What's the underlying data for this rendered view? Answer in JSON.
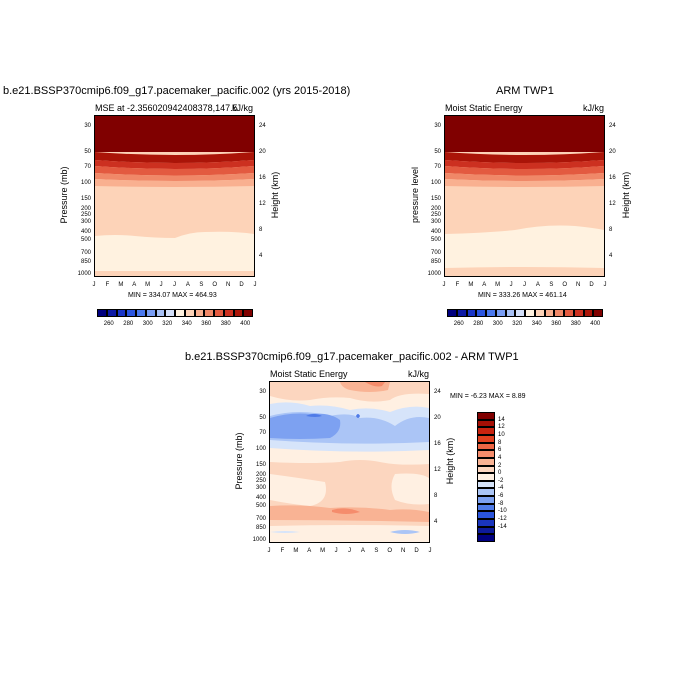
{
  "panel1": {
    "title": "b.e21.BSSP370cmip6.f09_g17.pacemaker_pacific.002 (yrs 2015-2018)",
    "subtitle_left": "MSE at -2.356020942408378,147.5",
    "subtitle_right": "kJ/kg",
    "ylabel": "Pressure (mb)",
    "ylabel_right": "Height (km)",
    "minmax": "MIN = 334.07 MAX = 464.93"
  },
  "panel2": {
    "title": "ARM TWP1",
    "subtitle_left": "Moist Static Energy",
    "subtitle_right": "kJ/kg",
    "ylabel": "pressure level",
    "ylabel_right": "Height (km)",
    "minmax": "MIN = 333.26 MAX = 461.14"
  },
  "panel3": {
    "title": "b.e21.BSSP370cmip6.f09_g17.pacemaker_pacific.002 - ARM TWP1",
    "subtitle_left": "Moist Static Energy",
    "subtitle_right": "kJ/kg",
    "ylabel": "Pressure (mb)",
    "ylabel_right": "Height (km)",
    "minmax": "MIN =  -6.23 MAX =   8.89"
  },
  "axes": {
    "months": [
      "J",
      "F",
      "M",
      "A",
      "M",
      "J",
      "J",
      "A",
      "S",
      "O",
      "N",
      "D",
      "J"
    ],
    "pressure_ticks": [
      "30",
      "50",
      "70",
      "100",
      "150",
      "200",
      "250",
      "300",
      "400",
      "500",
      "700",
      "850",
      "1000"
    ],
    "height_ticks_top": [
      "24",
      "20",
      "16",
      "12",
      "8",
      "4"
    ],
    "height_ticks_bottom": [
      "24",
      "20",
      "16",
      "12",
      "8",
      "4"
    ]
  },
  "colorbar_top": {
    "labels": [
      "260",
      "280",
      "300",
      "320",
      "340",
      "360",
      "380",
      "400"
    ],
    "colors": [
      "#00007f",
      "#0d1aa6",
      "#1a35c8",
      "#2b55e0",
      "#4a78ee",
      "#789cf4",
      "#a8c1f7",
      "#d4e0fa",
      "#fff2e0",
      "#fdd3b8",
      "#f9b090",
      "#f08868",
      "#e35a40",
      "#cc3020",
      "#aa1408",
      "#800000"
    ]
  },
  "colorbar_diff": {
    "labels": [
      "14",
      "12",
      "10",
      "8",
      "6",
      "4",
      "2",
      "0",
      "-2",
      "-4",
      "-6",
      "-8",
      "-10",
      "-12",
      "-14"
    ],
    "colors": [
      "#800000",
      "#a60f05",
      "#c8230f",
      "#e0401f",
      "#ee6644",
      "#f58c6c",
      "#f9b394",
      "#fcd6bf",
      "#fff0e2",
      "#d6e4fa",
      "#abc5f6",
      "#7da1f1",
      "#4f7be8",
      "#2b55dc",
      "#1a35bd",
      "#0d1a9a",
      "#00007f"
    ]
  },
  "chart_data": [
    {
      "type": "heatmap",
      "title": "b.e21.BSSP370cmip6.f09_g17.pacemaker_pacific.002 (yrs 2015-2018)",
      "subtitle": "MSE at -2.356020942408378,147.5",
      "units": "kJ/kg",
      "xlabel": "",
      "ylabel": "Pressure (mb)",
      "x": [
        "J",
        "F",
        "M",
        "A",
        "M",
        "J",
        "J",
        "A",
        "S",
        "O",
        "N",
        "D",
        "J"
      ],
      "y_levels": [
        30,
        50,
        70,
        100,
        150,
        200,
        250,
        300,
        400,
        500,
        700,
        850,
        1000
      ],
      "contour_levels": [
        260,
        270,
        280,
        290,
        300,
        310,
        320,
        330,
        340,
        350,
        360,
        370,
        380,
        390,
        400
      ],
      "rows_by_level": [
        {
          "p": 30,
          "values": [
            401,
            401,
            401,
            401,
            401,
            401,
            401,
            401,
            401,
            401,
            401,
            401,
            401
          ]
        },
        {
          "p": 50,
          "values": [
            395,
            394,
            392,
            390,
            388,
            386,
            385,
            386,
            388,
            390,
            392,
            394,
            395
          ]
        },
        {
          "p": 70,
          "values": [
            368,
            366,
            362,
            358,
            356,
            354,
            353,
            354,
            356,
            358,
            362,
            366,
            368
          ]
        },
        {
          "p": 100,
          "values": [
            355,
            354,
            352,
            350,
            349,
            348,
            348,
            348,
            349,
            350,
            352,
            354,
            355
          ]
        },
        {
          "p": 150,
          "values": [
            345,
            345,
            345,
            345,
            345,
            345,
            345,
            345,
            345,
            345,
            345,
            345,
            345
          ]
        },
        {
          "p": 200,
          "values": [
            342,
            342,
            342,
            342,
            342,
            342,
            342,
            342,
            342,
            342,
            342,
            342,
            342
          ]
        },
        {
          "p": 300,
          "values": [
            341,
            341,
            341,
            341,
            341,
            341,
            341,
            341,
            341,
            341,
            341,
            341,
            341
          ]
        },
        {
          "p": 400,
          "values": [
            341,
            341,
            341,
            338,
            341,
            339,
            338,
            338,
            338,
            338,
            338,
            338,
            341
          ]
        },
        {
          "p": 500,
          "values": [
            341,
            341,
            341,
            341,
            341,
            338,
            338,
            338,
            338,
            338,
            338,
            338,
            338
          ]
        },
        {
          "p": 700,
          "values": [
            341,
            341,
            341,
            341,
            341,
            341,
            341,
            338,
            338,
            338,
            338,
            338,
            341
          ]
        },
        {
          "p": 850,
          "values": [
            341,
            341,
            341,
            341,
            341,
            341,
            341,
            341,
            341,
            341,
            341,
            341,
            341
          ]
        },
        {
          "p": 1000,
          "values": [
            344,
            344,
            344,
            344,
            344,
            344,
            344,
            344,
            344,
            344,
            344,
            344,
            344
          ]
        }
      ],
      "min": 334.07,
      "max": 464.93
    },
    {
      "type": "heatmap",
      "title": "ARM TWP1",
      "subtitle": "Moist Static Energy",
      "units": "kJ/kg",
      "ylabel": "pressure level",
      "x": [
        "J",
        "F",
        "M",
        "A",
        "M",
        "J",
        "J",
        "A",
        "S",
        "O",
        "N",
        "D",
        "J"
      ],
      "y_levels": [
        30,
        50,
        70,
        100,
        150,
        200,
        250,
        300,
        400,
        500,
        700,
        850,
        1000
      ],
      "contour_levels": [
        260,
        270,
        280,
        290,
        300,
        310,
        320,
        330,
        340,
        350,
        360,
        370,
        380,
        390,
        400
      ],
      "rows_by_level": [
        {
          "p": 30,
          "values": [
            401,
            401,
            401,
            401,
            401,
            401,
            401,
            401,
            401,
            401,
            401,
            401,
            401
          ]
        },
        {
          "p": 50,
          "values": [
            396,
            394,
            392,
            390,
            388,
            386,
            385,
            386,
            388,
            390,
            392,
            394,
            396
          ]
        },
        {
          "p": 70,
          "values": [
            368,
            366,
            362,
            358,
            356,
            354,
            353,
            354,
            356,
            358,
            362,
            366,
            368
          ]
        },
        {
          "p": 100,
          "values": [
            355,
            354,
            352,
            350,
            349,
            348,
            348,
            348,
            349,
            350,
            352,
            354,
            355
          ]
        },
        {
          "p": 150,
          "values": [
            345,
            345,
            345,
            345,
            345,
            345,
            345,
            345,
            345,
            345,
            345,
            345,
            345
          ]
        },
        {
          "p": 200,
          "values": [
            342,
            342,
            342,
            342,
            342,
            342,
            342,
            342,
            342,
            342,
            342,
            342,
            342
          ]
        },
        {
          "p": 300,
          "values": [
            341,
            341,
            341,
            341,
            341,
            341,
            341,
            341,
            341,
            341,
            341,
            341,
            341
          ]
        },
        {
          "p": 400,
          "values": [
            341,
            341,
            341,
            341,
            341,
            339,
            338,
            338,
            338,
            338,
            338,
            338,
            341
          ]
        },
        {
          "p": 500,
          "values": [
            338,
            338,
            338,
            338,
            338,
            338,
            338,
            338,
            338,
            338,
            338,
            338,
            338
          ]
        },
        {
          "p": 700,
          "values": [
            338,
            338,
            338,
            338,
            338,
            338,
            338,
            338,
            338,
            338,
            338,
            338,
            338
          ]
        },
        {
          "p": 850,
          "values": [
            341,
            341,
            341,
            341,
            341,
            341,
            341,
            341,
            341,
            341,
            341,
            341,
            341
          ]
        },
        {
          "p": 1000,
          "values": [
            344,
            344,
            344,
            344,
            344,
            344,
            344,
            344,
            344,
            344,
            344,
            344,
            344
          ]
        }
      ],
      "min": 333.26,
      "max": 461.14
    },
    {
      "type": "heatmap",
      "title": "b.e21.BSSP370cmip6.f09_g17.pacemaker_pacific.002 - ARM TWP1",
      "subtitle": "Moist Static Energy",
      "units": "kJ/kg",
      "ylabel": "Pressure (mb)",
      "x": [
        "J",
        "F",
        "M",
        "A",
        "M",
        "J",
        "J",
        "A",
        "S",
        "O",
        "N",
        "D",
        "J"
      ],
      "y_levels": [
        30,
        50,
        70,
        100,
        150,
        200,
        250,
        300,
        400,
        500,
        700,
        850,
        1000
      ],
      "contour_levels": [
        -14,
        -12,
        -10,
        -8,
        -6,
        -4,
        -2,
        0,
        2,
        4,
        6,
        8,
        10,
        12,
        14
      ],
      "rows_by_level": [
        {
          "p": 30,
          "values": [
            1,
            1,
            1,
            3,
            3,
            4,
            5,
            6,
            6,
            5,
            1,
            3,
            1
          ]
        },
        {
          "p": 40,
          "values": [
            -1,
            -1,
            -1,
            1,
            1,
            2,
            3,
            3,
            4,
            3,
            -1,
            1,
            -1
          ]
        },
        {
          "p": 50,
          "values": [
            -1,
            -2,
            -3,
            -5,
            -3,
            -3,
            -3,
            -3,
            -3,
            -3,
            -3,
            -3,
            -1
          ]
        },
        {
          "p": 70,
          "values": [
            -3,
            -4,
            -4,
            -5,
            -4,
            -3,
            -3,
            -3,
            -4,
            -3,
            -4,
            -3,
            -3
          ]
        },
        {
          "p": 85,
          "values": [
            -3,
            -3,
            -3,
            -3,
            -3,
            -3,
            -3,
            -3,
            -3,
            -3,
            -3,
            -3,
            -3
          ]
        },
        {
          "p": 110,
          "values": [
            -1,
            -1,
            -1,
            -1,
            -1,
            -1,
            -1,
            -1,
            -1,
            -1,
            -1,
            -1,
            -1
          ]
        },
        {
          "p": 150,
          "values": [
            1,
            1,
            1,
            1,
            1,
            1,
            1,
            1,
            1,
            1,
            1,
            1,
            1
          ]
        },
        {
          "p": 200,
          "values": [
            1,
            1,
            1,
            1,
            1,
            2,
            3,
            3,
            3,
            2,
            1,
            1,
            1
          ]
        },
        {
          "p": 300,
          "values": [
            1,
            2,
            1,
            1,
            1,
            3,
            3,
            3,
            3,
            2,
            1,
            1,
            1
          ]
        },
        {
          "p": 400,
          "values": [
            1,
            1,
            1,
            1,
            1,
            3,
            3,
            3,
            3,
            2,
            1,
            1,
            1
          ]
        },
        {
          "p": 500,
          "values": [
            1,
            3,
            3,
            3,
            3,
            5,
            3,
            3,
            3,
            3,
            2,
            1,
            1
          ]
        },
        {
          "p": 700,
          "values": [
            1,
            1,
            1,
            1,
            1,
            1,
            1,
            1,
            1,
            1,
            1,
            1,
            1
          ]
        },
        {
          "p": 850,
          "values": [
            1,
            1,
            1,
            1,
            1,
            1,
            1,
            1,
            1,
            -1,
            -2,
            -1,
            1
          ]
        },
        {
          "p": 1000,
          "values": [
            1,
            1,
            1,
            1,
            1,
            1,
            1,
            1,
            1,
            1,
            1,
            1,
            1
          ]
        }
      ],
      "min": -6.23,
      "max": 8.89
    }
  ]
}
